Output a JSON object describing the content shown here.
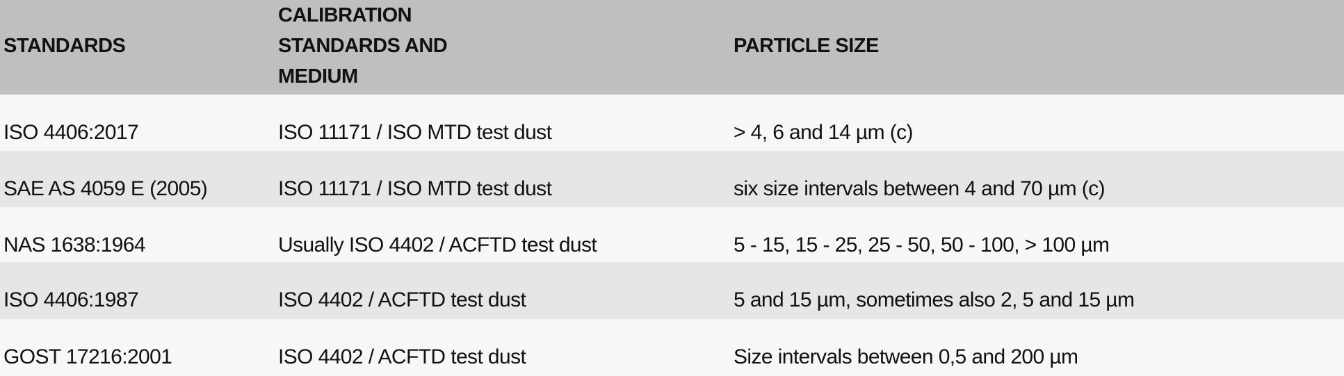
{
  "table": {
    "headers": [
      "STANDARDS",
      "CALIBRATION STANDARDS AND MEDIUM",
      "PARTICLE SIZE"
    ],
    "rows": [
      [
        "ISO 4406:2017",
        "ISO 11171 / ISO MTD test dust",
        "> 4, 6 and 14 µm (c)"
      ],
      [
        "SAE AS 4059 E (2005)",
        "ISO 11171 / ISO MTD test dust",
        "six size intervals between 4 and 70 µm (c)"
      ],
      [
        "NAS 1638:1964",
        "Usually ISO 4402 / ACFTD  test dust",
        "5 - 15, 15 - 25, 25 - 50, 50 - 100, > 100 µm"
      ],
      [
        "ISO 4406:1987",
        "ISO 4402 / ACFTD test dust",
        "5 and 15 µm, sometimes also 2, 5 and 15 µm"
      ],
      [
        "GOST 17216:2001",
        "ISO 4402 / ACFTD test dust",
        "Size intervals between 0,5 and 200 µm"
      ]
    ]
  },
  "colors": {
    "header_bg": "#bfbfbf",
    "row_light": "#f7f7f7",
    "row_dark": "#e6e6e6"
  }
}
